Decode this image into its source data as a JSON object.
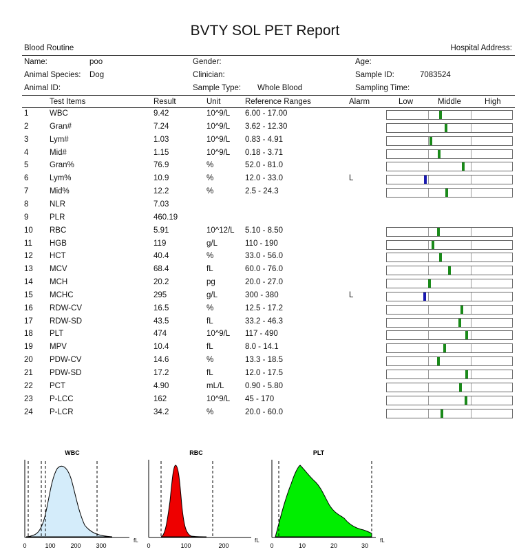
{
  "report": {
    "title": "BVTY SOL PET Report",
    "section": "Blood Routine",
    "hospital_address_label": "Hospital Address:"
  },
  "patient": {
    "name_label": "Name:",
    "name_value": "poo",
    "gender_label": "Gender:",
    "age_label": "Age:",
    "species_label": "Animal Species:",
    "species_value": "Dog",
    "clinician_label": "Clinician:",
    "sample_id_label": "Sample ID:",
    "sample_id_value": "7083524",
    "animal_id_label": "Animal ID:",
    "sample_type_label": "Sample Type:",
    "sample_type_value": "Whole Blood",
    "sampling_time_label": "Sampling Time:"
  },
  "table_headers": {
    "test_items": "Test Items",
    "result": "Result",
    "unit": "Unit",
    "reference": "Reference Ranges",
    "alarm": "Alarm",
    "low": "Low",
    "middle": "Middle",
    "high": "High"
  },
  "rows": [
    {
      "no": "1",
      "item": "WBC",
      "result": "9.42",
      "unit": "10^9/L",
      "range": "6.00 - 17.00",
      "alarm": "",
      "bar": true,
      "pos": 0.43,
      "flag": "normal"
    },
    {
      "no": "2",
      "item": "Gran#",
      "result": "7.24",
      "unit": "10^9/L",
      "range": "3.62 - 12.30",
      "alarm": "",
      "bar": true,
      "pos": 0.47,
      "flag": "normal"
    },
    {
      "no": "3",
      "item": "Lym#",
      "result": "1.03",
      "unit": "10^9/L",
      "range": "0.83 - 4.91",
      "alarm": "",
      "bar": true,
      "pos": 0.35,
      "flag": "normal"
    },
    {
      "no": "4",
      "item": "Mid#",
      "result": "1.15",
      "unit": "10^9/L",
      "range": "0.18 - 3.71",
      "alarm": "",
      "bar": true,
      "pos": 0.42,
      "flag": "normal"
    },
    {
      "no": "5",
      "item": "Gran%",
      "result": "76.9",
      "unit": "%",
      "range": "52.0 - 81.0",
      "alarm": "",
      "bar": true,
      "pos": 0.61,
      "flag": "normal"
    },
    {
      "no": "6",
      "item": "Lym%",
      "result": "10.9",
      "unit": "%",
      "range": "12.0 - 33.0",
      "alarm": "L",
      "bar": true,
      "pos": 0.31,
      "flag": "low"
    },
    {
      "no": "7",
      "item": "Mid%",
      "result": "12.2",
      "unit": "%",
      "range": "2.5 - 24.3",
      "alarm": "",
      "bar": true,
      "pos": 0.48,
      "flag": "normal"
    },
    {
      "no": "8",
      "item": "NLR",
      "result": "7.03",
      "unit": "",
      "range": "",
      "alarm": "",
      "bar": false
    },
    {
      "no": "9",
      "item": "PLR",
      "result": "460.19",
      "unit": "",
      "range": "",
      "alarm": "",
      "bar": false
    },
    {
      "no": "10",
      "item": "RBC",
      "result": "5.91",
      "unit": "10^12/L",
      "range": "5.10 - 8.50",
      "alarm": "",
      "bar": true,
      "pos": 0.41,
      "flag": "normal"
    },
    {
      "no": "11",
      "item": "HGB",
      "result": "119",
      "unit": "g/L",
      "range": "110 - 190",
      "alarm": "",
      "bar": true,
      "pos": 0.37,
      "flag": "normal"
    },
    {
      "no": "12",
      "item": "HCT",
      "result": "40.4",
      "unit": "%",
      "range": "33.0 - 56.0",
      "alarm": "",
      "bar": true,
      "pos": 0.43,
      "flag": "normal"
    },
    {
      "no": "13",
      "item": "MCV",
      "result": "68.4",
      "unit": "fL",
      "range": "60.0 - 76.0",
      "alarm": "",
      "bar": true,
      "pos": 0.5,
      "flag": "normal"
    },
    {
      "no": "14",
      "item": "MCH",
      "result": "20.2",
      "unit": "pg",
      "range": "20.0 - 27.0",
      "alarm": "",
      "bar": true,
      "pos": 0.34,
      "flag": "normal"
    },
    {
      "no": "15",
      "item": "MCHC",
      "result": "295",
      "unit": "g/L",
      "range": "300 - 380",
      "alarm": "L",
      "bar": true,
      "pos": 0.3,
      "flag": "low"
    },
    {
      "no": "16",
      "item": "RDW-CV",
      "result": "16.5",
      "unit": "%",
      "range": "12.5 - 17.2",
      "alarm": "",
      "bar": true,
      "pos": 0.6,
      "flag": "normal"
    },
    {
      "no": "17",
      "item": "RDW-SD",
      "result": "43.5",
      "unit": "fL",
      "range": "33.2 - 46.3",
      "alarm": "",
      "bar": true,
      "pos": 0.58,
      "flag": "normal"
    },
    {
      "no": "18",
      "item": "PLT",
      "result": "474",
      "unit": "10^9/L",
      "range": "117 - 490",
      "alarm": "",
      "bar": true,
      "pos": 0.64,
      "flag": "normal"
    },
    {
      "no": "19",
      "item": "MPV",
      "result": "10.4",
      "unit": "fL",
      "range": "8.0 - 14.1",
      "alarm": "",
      "bar": true,
      "pos": 0.46,
      "flag": "normal"
    },
    {
      "no": "20",
      "item": "PDW-CV",
      "result": "14.6",
      "unit": "%",
      "range": "13.3 - 18.5",
      "alarm": "",
      "bar": true,
      "pos": 0.41,
      "flag": "normal"
    },
    {
      "no": "21",
      "item": "PDW-SD",
      "result": "17.2",
      "unit": "fL",
      "range": "12.0 - 17.5",
      "alarm": "",
      "bar": true,
      "pos": 0.64,
      "flag": "normal"
    },
    {
      "no": "22",
      "item": "PCT",
      "result": "4.90",
      "unit": "mL/L",
      "range": "0.90 - 5.80",
      "alarm": "",
      "bar": true,
      "pos": 0.59,
      "flag": "normal"
    },
    {
      "no": "23",
      "item": "P-LCC",
      "result": "162",
      "unit": "10^9/L",
      "range": "45 - 170",
      "alarm": "",
      "bar": true,
      "pos": 0.63,
      "flag": "normal"
    },
    {
      "no": "24",
      "item": "P-LCR",
      "result": "34.2",
      "unit": "%",
      "range": "20.0 - 60.0",
      "alarm": "",
      "bar": true,
      "pos": 0.44,
      "flag": "normal"
    }
  ],
  "histograms": {
    "wbc": {
      "title": "WBC",
      "unit": "fL",
      "ticks": [
        "0",
        "100",
        "200",
        "300"
      ],
      "color": "#d4ecfa"
    },
    "rbc": {
      "title": "RBC",
      "unit": "fL",
      "ticks": [
        "0",
        "100",
        "200"
      ],
      "color": "#ee0000"
    },
    "plt": {
      "title": "PLT",
      "unit": "fL",
      "ticks": [
        "0",
        "10",
        "20",
        "30"
      ],
      "color": "#00ee00"
    }
  }
}
